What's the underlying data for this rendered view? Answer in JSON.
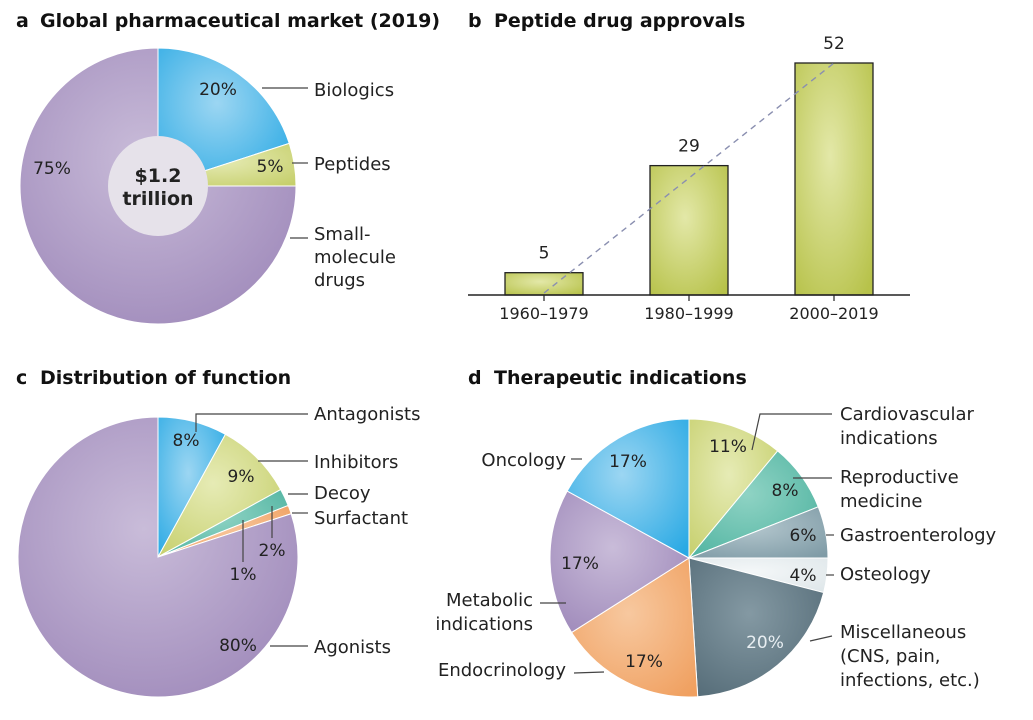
{
  "chart_data": [
    {
      "id": "a",
      "type": "pie",
      "panel": "a",
      "title": "Global pharmaceutical market (2019)",
      "center_label": [
        "$1.2",
        "trillion"
      ],
      "slices": [
        {
          "name": "Biologics",
          "label_lines": [
            "Biologics"
          ],
          "value": 20,
          "pct": "20%",
          "color": "#29a9e4",
          "color2": "#9cd6f2"
        },
        {
          "name": "Peptides",
          "label_lines": [
            "Peptides"
          ],
          "value": 5,
          "pct": "5%",
          "color": "#c6cf6c",
          "color2": "#e6ebb5"
        },
        {
          "name": "Small-molecule drugs",
          "label_lines": [
            "Small-",
            "molecule",
            "drugs"
          ],
          "value": 75,
          "pct": "75%",
          "color": "#9c86b8",
          "color2": "#c9bcd9"
        }
      ]
    },
    {
      "id": "b",
      "type": "bar",
      "panel": "b",
      "title": "Peptide drug approvals",
      "categories": [
        "1960–1979",
        "1980–1999",
        "2000–2019"
      ],
      "values": [
        5,
        29,
        52
      ],
      "ylim": [
        0,
        52
      ],
      "xlabel": "",
      "ylabel": "",
      "trendline": true,
      "color": "#b7c24a"
    },
    {
      "id": "c",
      "type": "pie",
      "panel": "c",
      "title": "Distribution of function",
      "slices": [
        {
          "name": "Antagonists",
          "label_lines": [
            "Antagonists"
          ],
          "value": 8,
          "pct": "8%",
          "color": "#29a9e4",
          "color2": "#9cd6f2"
        },
        {
          "name": "Inhibitors",
          "label_lines": [
            "Inhibitors"
          ],
          "value": 9,
          "pct": "9%",
          "color": "#c6cf6c",
          "color2": "#e6ebb5"
        },
        {
          "name": "Decoy",
          "label_lines": [
            "Decoy"
          ],
          "value": 2,
          "pct": "2%",
          "color": "#4fb3a0",
          "color2": "#8fd3c4"
        },
        {
          "name": "Surfactant",
          "label_lines": [
            "Surfactant"
          ],
          "value": 1,
          "pct": "1%",
          "color": "#f0a060",
          "color2": "#f7c89f"
        },
        {
          "name": "Agonists",
          "label_lines": [
            "Agonists"
          ],
          "value": 80,
          "pct": "80%",
          "color": "#9c86b8",
          "color2": "#c9bcd9"
        }
      ]
    },
    {
      "id": "d",
      "type": "pie",
      "panel": "d",
      "title": "Therapeutic indications",
      "slices": [
        {
          "name": "Cardiovascular indications",
          "label_lines": [
            "Cardiovascular",
            "indications"
          ],
          "value": 11,
          "pct": "11%",
          "color": "#c6cf6c",
          "color2": "#e6ebb5"
        },
        {
          "name": "Reproductive medicine",
          "label_lines": [
            "Reproductive",
            "medicine"
          ],
          "value": 8,
          "pct": "8%",
          "color": "#4fb3a0",
          "color2": "#8fd3c4"
        },
        {
          "name": "Gastroenterology",
          "label_lines": [
            "Gastroenterology"
          ],
          "value": 6,
          "pct": "6%",
          "color": "#7f9ba6",
          "color2": "#b3c6cd"
        },
        {
          "name": "Osteology",
          "label_lines": [
            "Osteology"
          ],
          "value": 4,
          "pct": "4%",
          "color": "#dfe7ea",
          "color2": "#f4f7f8"
        },
        {
          "name": "Miscellaneous (CNS, pain, infections, etc.)",
          "label_lines": [
            "Miscellaneous",
            "(CNS, pain,",
            "infections, etc.)"
          ],
          "value": 20,
          "pct": "20%",
          "color": "#536a76",
          "color2": "#8499a3",
          "light_text": true
        },
        {
          "name": "Endocrinology",
          "label_lines": [
            "Endocrinology"
          ],
          "value": 17,
          "pct": "17%",
          "color": "#f0a060",
          "color2": "#f7c89f"
        },
        {
          "name": "Metabolic indications",
          "label_lines": [
            "Metabolic",
            "indications"
          ],
          "value": 17,
          "pct": "17%",
          "color": "#9c86b8",
          "color2": "#c9bcd9"
        },
        {
          "name": "Oncology",
          "label_lines": [
            "Oncology"
          ],
          "value": 17,
          "pct": "17%",
          "color": "#29a9e4",
          "color2": "#9cd6f2"
        }
      ]
    }
  ]
}
